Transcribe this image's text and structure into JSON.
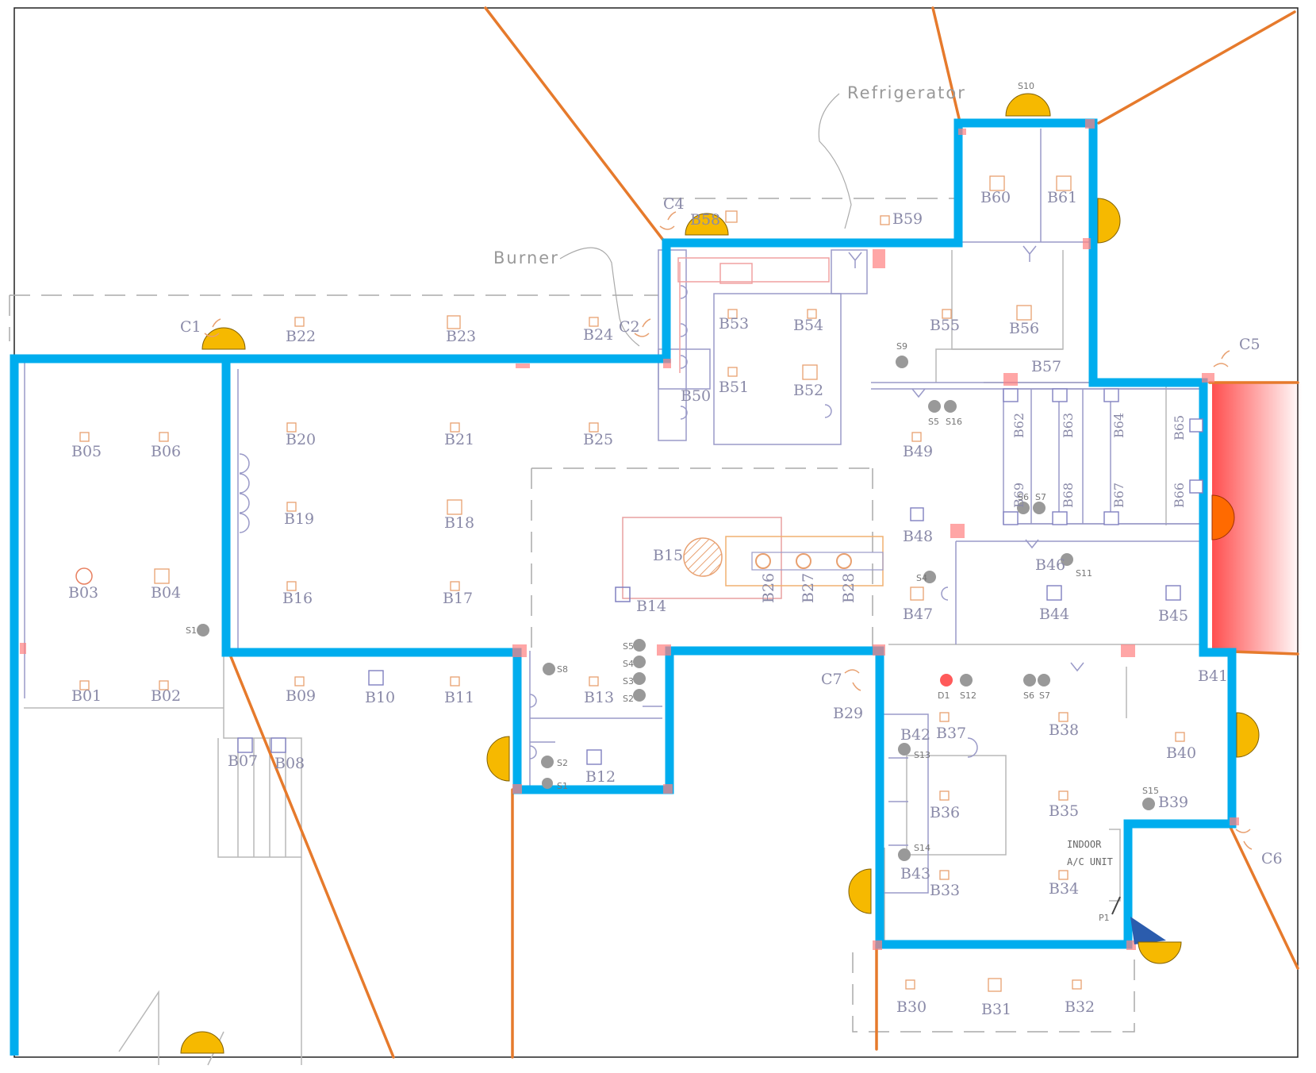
{
  "colors": {
    "wall": "#00adee",
    "ray": "#e67a2c",
    "sensor": "#f6b900",
    "sensor_alert": "#ff6a00",
    "heat": "#ff3b3b",
    "fixture": "#9a9ac8",
    "label": "#8a8aa8"
  },
  "annotations": {
    "refrigerator": "Refrigerator",
    "burner": "Burner",
    "indoor_ac_line1": "INDOOR",
    "indoor_ac_line2": "A/C UNIT"
  },
  "beds": {
    "B01": "B01",
    "B02": "B02",
    "B03": "B03",
    "B04": "B04",
    "B05": "B05",
    "B06": "B06",
    "B07": "B07",
    "B08": "B08",
    "B09": "B09",
    "B10": "B10",
    "B11": "B11",
    "B12": "B12",
    "B13": "B13",
    "B14": "B14",
    "B15": "B15",
    "B16": "B16",
    "B17": "B17",
    "B18": "B18",
    "B19": "B19",
    "B20": "B20",
    "B21": "B21",
    "B22": "B22",
    "B23": "B23",
    "B24": "B24",
    "B25": "B25",
    "B26": "B26",
    "B27": "B27",
    "B28": "B28",
    "B29": "B29",
    "B30": "B30",
    "B31": "B31",
    "B32": "B32",
    "B33": "B33",
    "B34": "B34",
    "B35": "B35",
    "B36": "B36",
    "B37": "B37",
    "B38": "B38",
    "B39": "B39",
    "B40": "B40",
    "B41": "B41",
    "B42": "B42",
    "B43": "B43",
    "B44": "B44",
    "B45": "B45",
    "B46": "B46",
    "B47": "B47",
    "B48": "B48",
    "B49": "B49",
    "B50": "B50",
    "B51": "B51",
    "B52": "B52",
    "B53": "B53",
    "B54": "B54",
    "B55": "B55",
    "B56": "B56",
    "B57": "B57",
    "B58": "B58",
    "B59": "B59",
    "B60": "B60",
    "B61": "B61",
    "B62": "B62",
    "B63": "B63",
    "B64": "B64",
    "B65": "B65",
    "B66": "B66",
    "B67": "B67",
    "B68": "B68",
    "B69": "B69"
  },
  "cameras": {
    "C1": "C1",
    "C2": "C2",
    "C4": "C4",
    "C5": "C5",
    "C6": "C6",
    "C7": "C7"
  },
  "sensors": {
    "S1": "S1",
    "S1b": "S1",
    "S2": "S2",
    "S2b": "S2",
    "S3": "S3",
    "S4": "S4",
    "S4b": "S4",
    "S5": "S5",
    "S5b": "S5",
    "S6": "S6",
    "S6b": "S6",
    "S7": "S7",
    "S7b": "S7",
    "S8": "S8",
    "S9": "S9",
    "S10": "S10",
    "S11": "S11",
    "S12": "S12",
    "S13": "S13",
    "S14": "S14",
    "S15": "S15",
    "S16": "S16",
    "D1": "D1",
    "P1": "P1"
  }
}
